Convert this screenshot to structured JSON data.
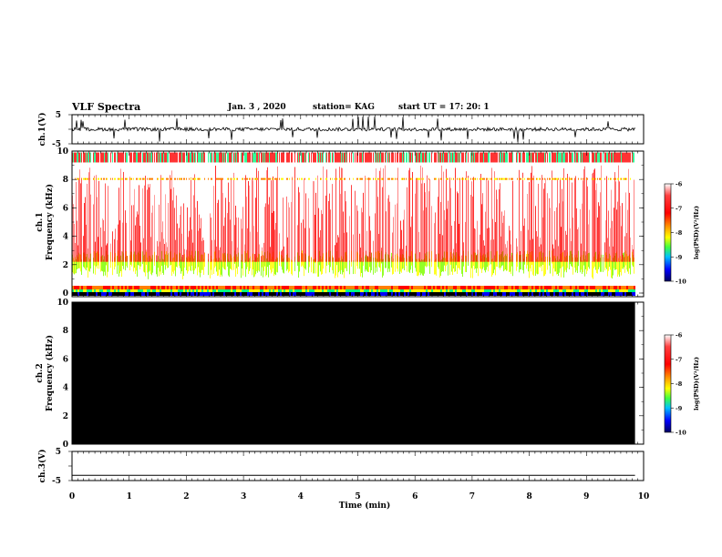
{
  "header": {
    "title": "VLF Spectra",
    "date": "Jan. 3 , 2020",
    "station": "station= KAG",
    "start": "start UT = 17: 20: 1"
  },
  "chart_data": [
    {
      "type": "line",
      "panel": "ch1-waveform",
      "ylabel": "ch.1(V)",
      "ylim": [
        -5,
        5
      ],
      "yticklabels": [
        "5",
        "-5"
      ],
      "xlim": [
        0,
        10
      ],
      "baseline": 0,
      "description_values": {
        "spikes_min": -4.5,
        "spikes_max": 4.5
      }
    },
    {
      "type": "heatmap",
      "panel": "ch1-spectrogram",
      "ylabel": "ch.1 Frequency (kHz)",
      "ylim": [
        0,
        10
      ],
      "yticklabels": [
        "0",
        "2",
        "4",
        "6",
        "8",
        "10"
      ],
      "xlim": [
        0,
        9.85
      ],
      "colorbar": {
        "label": "log(PSD)(V²/Hz)",
        "ticks": [
          "-6",
          "-7",
          "-8",
          "-9",
          "-10"
        ],
        "range": [
          -10,
          -6
        ]
      }
    },
    {
      "type": "heatmap",
      "panel": "ch2-spectrogram",
      "ylabel": "ch.2 Frequency (kHz)",
      "ylim": [
        0,
        10
      ],
      "yticklabels": [
        "0",
        "2",
        "4",
        "6",
        "8",
        "10"
      ],
      "xlim": [
        0,
        9.85
      ],
      "fill": "#000000",
      "colorbar": {
        "label": "log(PSD)(V²/Hz)",
        "ticks": [
          "-6",
          "-7",
          "-8",
          "-9",
          "-10"
        ],
        "range": [
          -10,
          -6
        ]
      }
    },
    {
      "type": "line",
      "panel": "ch3-waveform",
      "ylabel": "ch.3(V)",
      "ylim": [
        -5,
        5
      ],
      "yticklabels": [
        "5",
        "-5"
      ],
      "xlim": [
        0,
        10
      ],
      "x": [
        0,
        9.85
      ],
      "y": [
        -3.2,
        -3.2
      ]
    }
  ],
  "xaxis": {
    "label": "Time (min)",
    "ticks": [
      "0",
      "1",
      "2",
      "3",
      "4",
      "5",
      "6",
      "7",
      "8",
      "9",
      "10"
    ],
    "range": [
      0,
      10
    ]
  },
  "colors": {
    "cmap": [
      "#000080",
      "#0000ff",
      "#00c0ff",
      "#00ff80",
      "#80ff00",
      "#ffff00",
      "#ff8000",
      "#ff0000",
      "#ffffff"
    ]
  }
}
